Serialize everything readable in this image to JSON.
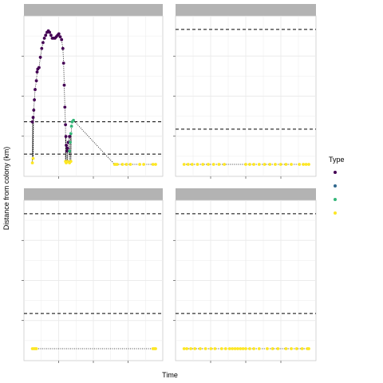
{
  "chart_data": {
    "type": "scatter",
    "xlabel": "Time",
    "ylabel": "Distance from colony (km)",
    "legend": {
      "title": "Type",
      "position": "right",
      "entries": [
        {
          "color": "#440154"
        },
        {
          "color": "#31688e"
        },
        {
          "color": "#35b779"
        },
        {
          "color": "#fde725"
        }
      ]
    },
    "colors": {
      "panel_strip": "#b3b3b3",
      "grid": "#ebebeb",
      "border": "#cccccc",
      "reference_line": "#000000",
      "path": "#000000"
    },
    "grid": true,
    "facets": [
      {
        "position": "top-left",
        "xlim": [
          0,
          100
        ],
        "ylim": [
          -5,
          100
        ],
        "reference_lines": [
          30,
          8
        ],
        "series": [
          {
            "type_index": 0,
            "points": [
              [
                4,
                30
              ],
              [
                4.5,
                33
              ],
              [
                5,
                38
              ],
              [
                5.5,
                45
              ],
              [
                6,
                52
              ],
              [
                7,
                58
              ],
              [
                7.5,
                64
              ],
              [
                8,
                66
              ],
              [
                9,
                67
              ],
              [
                10,
                74
              ],
              [
                11,
                80
              ],
              [
                12,
                84
              ],
              [
                13,
                87
              ],
              [
                14,
                89
              ],
              [
                15,
                91
              ],
              [
                16,
                92
              ],
              [
                17,
                91
              ],
              [
                18,
                89
              ],
              [
                19,
                87
              ],
              [
                20,
                87
              ],
              [
                21,
                87
              ],
              [
                22,
                88
              ],
              [
                23,
                89
              ],
              [
                24,
                90
              ],
              [
                25,
                88
              ],
              [
                26,
                86
              ],
              [
                27,
                80
              ],
              [
                27.5,
                70
              ],
              [
                28,
                55
              ],
              [
                28.5,
                40
              ],
              [
                29,
                28
              ],
              [
                29.3,
                20
              ],
              [
                29.6,
                14
              ],
              [
                30,
                10
              ],
              [
                30.5,
                12
              ],
              [
                31,
                16
              ],
              [
                32,
                20
              ]
            ]
          },
          {
            "type_index": 1,
            "points": []
          },
          {
            "type_index": 2,
            "points": [
              [
                32,
                10
              ],
              [
                32.5,
                16
              ],
              [
                33,
                22
              ],
              [
                33.5,
                27
              ],
              [
                34,
                30
              ],
              [
                35,
                31
              ]
            ]
          },
          {
            "type_index": 3,
            "points": [
              [
                4,
                2
              ],
              [
                4.5,
                5
              ],
              [
                29,
                3
              ],
              [
                29.5,
                2
              ],
              [
                30.5,
                3
              ],
              [
                32,
                2
              ],
              [
                33,
                3
              ],
              [
                66,
                1
              ],
              [
                67,
                1
              ],
              [
                68,
                1
              ],
              [
                72,
                1
              ],
              [
                75,
                1
              ],
              [
                78,
                1
              ],
              [
                85,
                1
              ],
              [
                88,
                1
              ],
              [
                95,
                1
              ],
              [
                97,
                1
              ]
            ]
          }
        ]
      },
      {
        "position": "top-right",
        "xlim": [
          0,
          100
        ],
        "ylim": [
          -5,
          100
        ],
        "reference_lines": [
          93,
          25
        ],
        "series": [
          {
            "type_index": 0,
            "points": []
          },
          {
            "type_index": 1,
            "points": []
          },
          {
            "type_index": 2,
            "points": []
          },
          {
            "type_index": 3,
            "points": [
              [
                4,
                1
              ],
              [
                7,
                1
              ],
              [
                10,
                1
              ],
              [
                14,
                1
              ],
              [
                18,
                1
              ],
              [
                22,
                1
              ],
              [
                26,
                1
              ],
              [
                30,
                1
              ],
              [
                34,
                1
              ],
              [
                50,
                1
              ],
              [
                53,
                1
              ],
              [
                56,
                1
              ],
              [
                60,
                1
              ],
              [
                64,
                1
              ],
              [
                68,
                1
              ],
              [
                72,
                1
              ],
              [
                76,
                1
              ],
              [
                80,
                1
              ],
              [
                84,
                1
              ],
              [
                90,
                1
              ],
              [
                93,
                1
              ],
              [
                95,
                1
              ],
              [
                97,
                1
              ]
            ]
          }
        ]
      },
      {
        "position": "bottom-left",
        "xlim": [
          0,
          100
        ],
        "ylim": [
          -5,
          100
        ],
        "reference_lines": [
          93,
          25
        ],
        "series": [
          {
            "type_index": 0,
            "points": []
          },
          {
            "type_index": 1,
            "points": []
          },
          {
            "type_index": 2,
            "points": []
          },
          {
            "type_index": 3,
            "points": [
              [
                4,
                1
              ],
              [
                5,
                1
              ],
              [
                6,
                1
              ],
              [
                7,
                1
              ],
              [
                95,
                1
              ],
              [
                96,
                1
              ],
              [
                97,
                1
              ]
            ]
          }
        ]
      },
      {
        "position": "bottom-right",
        "xlim": [
          0,
          100
        ],
        "ylim": [
          -5,
          100
        ],
        "reference_lines": [
          93,
          25
        ],
        "series": [
          {
            "type_index": 0,
            "points": []
          },
          {
            "type_index": 1,
            "points": []
          },
          {
            "type_index": 2,
            "points": []
          },
          {
            "type_index": 3,
            "points": [
              [
                4,
                1
              ],
              [
                6,
                1
              ],
              [
                9,
                1
              ],
              [
                12,
                1
              ],
              [
                16,
                1
              ],
              [
                20,
                1
              ],
              [
                24,
                1
              ],
              [
                27,
                1
              ],
              [
                32,
                1
              ],
              [
                35,
                1
              ],
              [
                38,
                1
              ],
              [
                40,
                1
              ],
              [
                42,
                1
              ],
              [
                44,
                1
              ],
              [
                46,
                1
              ],
              [
                48,
                1
              ],
              [
                50,
                1
              ],
              [
                53,
                1
              ],
              [
                56,
                1
              ],
              [
                60,
                1
              ],
              [
                66,
                1
              ],
              [
                70,
                1
              ],
              [
                74,
                1
              ],
              [
                80,
                1
              ],
              [
                84,
                1
              ],
              [
                88,
                1
              ],
              [
                92,
                1
              ],
              [
                96,
                1
              ],
              [
                97,
                1
              ]
            ]
          }
        ]
      }
    ]
  }
}
